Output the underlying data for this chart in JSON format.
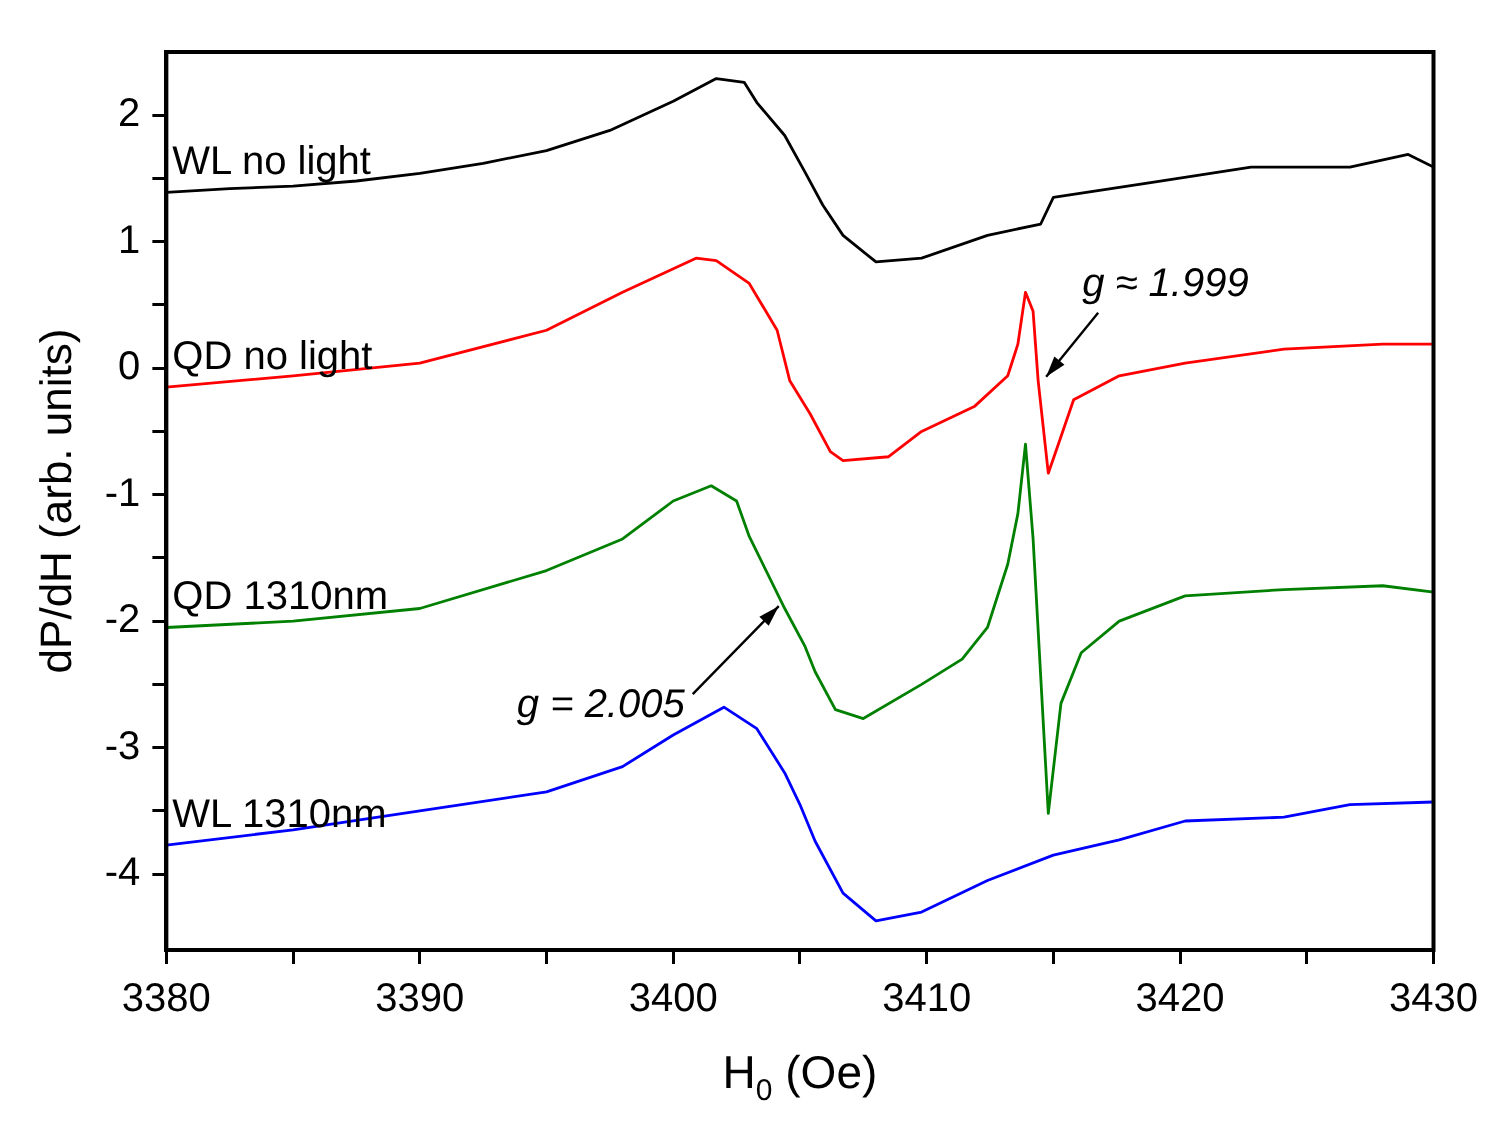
{
  "chart_data": {
    "type": "line",
    "xlabel": "H$_{0}$ (Oe)",
    "ylabel": "dP/dH (arb. units)",
    "xlim": [
      3380,
      3430
    ],
    "ylim": [
      -4.6,
      2.5
    ],
    "xticks": [
      3380,
      {
        "value": 3385,
        "label": null
      },
      3390,
      {
        "value": 3395,
        "label": null
      },
      3400,
      {
        "value": 3405,
        "label": null
      },
      3410,
      {
        "value": 3415,
        "label": null
      },
      3420,
      {
        "value": 3425,
        "label": null
      },
      3430
    ],
    "yticks": [
      -4,
      {
        "value": -3.5,
        "label": null
      },
      -3,
      {
        "value": -2.5,
        "label": null
      },
      -2,
      {
        "value": -1.5,
        "label": null
      },
      -1,
      {
        "value": -0.5,
        "label": null
      },
      0,
      {
        "value": 0.5,
        "label": null
      },
      1,
      {
        "value": 1.5,
        "label": null
      },
      2
    ],
    "grid": false,
    "legend": false,
    "marker": "none",
    "line_style": "solid",
    "series": [
      {
        "name": "WL no light",
        "color": "#000000",
        "x": [
          3380,
          3382.5,
          3385,
          3387.5,
          3390,
          3392.5,
          3395,
          3397.5,
          3400,
          3401.7,
          3402.8,
          3403.3,
          3404.4,
          3405.2,
          3405.9,
          3406.7,
          3408,
          3409.8,
          3412.4,
          3414.5,
          3415,
          3418.9,
          3422.8,
          3426.7,
          3429,
          3430
        ],
        "values": [
          1.39,
          1.42,
          1.44,
          1.48,
          1.54,
          1.62,
          1.72,
          1.88,
          2.11,
          2.29,
          2.26,
          2.1,
          1.84,
          1.55,
          1.29,
          1.05,
          0.84,
          0.87,
          1.05,
          1.14,
          1.35,
          1.47,
          1.59,
          1.59,
          1.69,
          1.59
        ]
      },
      {
        "name": "QD no light",
        "color": "#ff0000",
        "x": [
          3380,
          3385,
          3390,
          3395,
          3398,
          3400.9,
          3401.7,
          3403,
          3404.1,
          3404.6,
          3405.4,
          3406.2,
          3406.7,
          3408.5,
          3409.8,
          3411.9,
          3413.2,
          3413.6,
          3413.9,
          3414.2,
          3414.4,
          3414.8,
          3415.2,
          3415.8,
          3417.6,
          3420.2,
          3424.1,
          3428,
          3430
        ],
        "values": [
          -0.15,
          -0.06,
          0.04,
          0.3,
          0.6,
          0.87,
          0.85,
          0.67,
          0.3,
          -0.1,
          -0.36,
          -0.66,
          -0.73,
          -0.7,
          -0.5,
          -0.3,
          -0.06,
          0.19,
          0.6,
          0.45,
          -0.1,
          -0.83,
          -0.6,
          -0.25,
          -0.06,
          0.04,
          0.15,
          0.19,
          0.19
        ]
      },
      {
        "name": "QD 1310nm",
        "color": "#008000",
        "x": [
          3380,
          3385,
          3390,
          3395,
          3398,
          3400,
          3401.5,
          3402.5,
          3403,
          3404.4,
          3405.2,
          3405.6,
          3406.4,
          3407.5,
          3409.8,
          3411.4,
          3412.4,
          3413.2,
          3413.6,
          3413.9,
          3414.2,
          3414.8,
          3415.3,
          3416.1,
          3417.6,
          3420.2,
          3424.1,
          3428,
          3430
        ],
        "values": [
          -2.05,
          -2.0,
          -1.9,
          -1.6,
          -1.35,
          -1.05,
          -0.93,
          -1.05,
          -1.33,
          -1.9,
          -2.2,
          -2.4,
          -2.7,
          -2.77,
          -2.5,
          -2.3,
          -2.05,
          -1.55,
          -1.15,
          -0.6,
          -1.35,
          -3.52,
          -2.65,
          -2.25,
          -2.0,
          -1.8,
          -1.75,
          -1.72,
          -1.77
        ]
      },
      {
        "name": "WL 1310nm",
        "color": "#0000ff",
        "x": [
          3380,
          3385,
          3390,
          3395,
          3398,
          3400,
          3402,
          3403.3,
          3404.4,
          3405,
          3405.6,
          3406.7,
          3408,
          3409.8,
          3412.4,
          3415,
          3417.6,
          3420.2,
          3424.1,
          3426.7,
          3430
        ],
        "values": [
          -3.77,
          -3.65,
          -3.5,
          -3.35,
          -3.15,
          -2.9,
          -2.68,
          -2.85,
          -3.2,
          -3.45,
          -3.74,
          -4.15,
          -4.37,
          -4.3,
          -4.05,
          -3.85,
          -3.73,
          -3.58,
          -3.55,
          -3.45,
          -3.43
        ]
      }
    ],
    "annotations": [
      {
        "text": "g ≈ 1.999",
        "x": 3414.4,
        "y": -0.1
      },
      {
        "text": "g = 2.005",
        "x": 3404.4,
        "y": -1.85
      }
    ]
  }
}
